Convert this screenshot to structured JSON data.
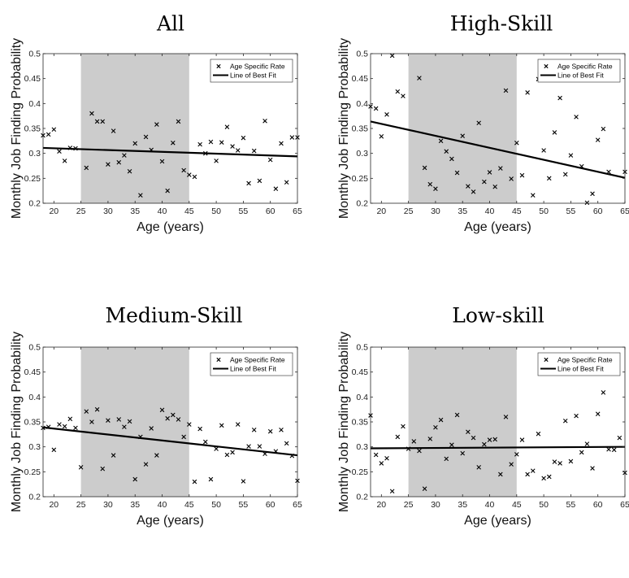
{
  "legend": {
    "marker_label": "Age Specific Rate",
    "line_label": "Line of Best Fit"
  },
  "chart_data": [
    {
      "type": "scatter",
      "title": "All",
      "xlabel": "Age (years)",
      "ylabel": "Monthly Job Finding Probability",
      "xlim": [
        18,
        65
      ],
      "ylim": [
        0.2,
        0.5
      ],
      "xticks": [
        20,
        25,
        30,
        35,
        40,
        45,
        50,
        55,
        60,
        65
      ],
      "yticks": [
        0.2,
        0.25,
        0.3,
        0.35,
        0.4,
        0.45,
        0.5
      ],
      "shaded_region": [
        25,
        45
      ],
      "legend_position": "top-right",
      "series": [
        {
          "name": "Age Specific Rate",
          "marker": "x",
          "x": [
            18,
            19,
            20,
            21,
            22,
            23,
            24,
            26,
            27,
            28,
            29,
            30,
            31,
            32,
            33,
            34,
            35,
            36,
            37,
            38,
            39,
            40,
            41,
            42,
            43,
            44,
            45,
            46,
            47,
            48,
            49,
            50,
            51,
            52,
            53,
            54,
            55,
            56,
            57,
            58,
            59,
            60,
            61,
            62,
            63,
            64,
            65
          ],
          "y": [
            0.336,
            0.338,
            0.348,
            0.304,
            0.285,
            0.311,
            0.31,
            0.271,
            0.38,
            0.364,
            0.364,
            0.278,
            0.345,
            0.282,
            0.296,
            0.264,
            0.32,
            0.216,
            0.333,
            0.307,
            0.358,
            0.284,
            0.225,
            0.321,
            0.364,
            0.266,
            0.257,
            0.253,
            0.318,
            0.3,
            0.323,
            0.285,
            0.322,
            0.353,
            0.314,
            0.306,
            0.331,
            0.24,
            0.305,
            0.245,
            0.365,
            0.287,
            0.229,
            0.32,
            0.242,
            0.332,
            0.332
          ]
        },
        {
          "name": "Line of Best Fit",
          "type": "line",
          "x": [
            18,
            65
          ],
          "y": [
            0.311,
            0.294
          ]
        }
      ]
    },
    {
      "type": "scatter",
      "title": "High-Skill",
      "xlabel": "Age (years)",
      "ylabel": "Monthly Job Finding Probability",
      "xlim": [
        18,
        65
      ],
      "ylim": [
        0.2,
        0.5
      ],
      "xticks": [
        20,
        25,
        30,
        35,
        40,
        45,
        50,
        55,
        60,
        65
      ],
      "yticks": [
        0.2,
        0.25,
        0.3,
        0.35,
        0.4,
        0.45,
        0.5
      ],
      "shaded_region": [
        25,
        45
      ],
      "legend_position": "top-right",
      "series": [
        {
          "name": "Age Specific Rate",
          "marker": "x",
          "x": [
            18,
            19,
            20,
            21,
            22,
            23,
            24,
            27,
            28,
            29,
            30,
            31,
            32,
            33,
            34,
            35,
            36,
            37,
            38,
            39,
            40,
            41,
            42,
            43,
            44,
            45,
            46,
            47,
            48,
            49,
            50,
            51,
            52,
            53,
            54,
            55,
            56,
            57,
            58,
            59,
            60,
            61,
            62,
            65
          ],
          "y": [
            0.394,
            0.39,
            0.334,
            0.378,
            0.496,
            0.424,
            0.415,
            0.451,
            0.271,
            0.238,
            0.229,
            0.325,
            0.304,
            0.289,
            0.261,
            0.335,
            0.234,
            0.223,
            0.361,
            0.243,
            0.262,
            0.233,
            0.27,
            0.426,
            0.249,
            0.321,
            0.256,
            0.422,
            0.216,
            0.449,
            0.306,
            0.25,
            0.342,
            0.411,
            0.258,
            0.296,
            0.373,
            0.274,
            0.201,
            0.219,
            0.327,
            0.349,
            0.263,
            0.263
          ]
        },
        {
          "name": "Line of Best Fit",
          "type": "line",
          "x": [
            18,
            65
          ],
          "y": [
            0.364,
            0.251
          ]
        }
      ]
    },
    {
      "type": "scatter",
      "title": "Medium-Skill",
      "xlabel": "Age (years)",
      "ylabel": "Monthly Job Finding Probability",
      "xlim": [
        18,
        65
      ],
      "ylim": [
        0.2,
        0.5
      ],
      "xticks": [
        20,
        25,
        30,
        35,
        40,
        45,
        50,
        55,
        60,
        65
      ],
      "yticks": [
        0.2,
        0.25,
        0.3,
        0.35,
        0.4,
        0.45,
        0.5
      ],
      "shaded_region": [
        25,
        45
      ],
      "legend_position": "top-right",
      "series": [
        {
          "name": "Age Specific Rate",
          "marker": "x",
          "x": [
            18,
            19,
            20,
            21,
            22,
            23,
            24,
            25,
            26,
            27,
            28,
            29,
            30,
            31,
            32,
            33,
            34,
            35,
            36,
            37,
            38,
            39,
            40,
            41,
            42,
            43,
            44,
            45,
            46,
            47,
            48,
            49,
            50,
            51,
            52,
            53,
            54,
            55,
            56,
            57,
            58,
            59,
            60,
            61,
            62,
            63,
            64,
            65
          ],
          "y": [
            0.338,
            0.34,
            0.294,
            0.345,
            0.341,
            0.356,
            0.338,
            0.259,
            0.371,
            0.35,
            0.375,
            0.256,
            0.353,
            0.283,
            0.355,
            0.34,
            0.351,
            0.235,
            0.32,
            0.265,
            0.337,
            0.283,
            0.374,
            0.357,
            0.364,
            0.355,
            0.32,
            0.345,
            0.23,
            0.336,
            0.31,
            0.235,
            0.296,
            0.343,
            0.284,
            0.289,
            0.345,
            0.231,
            0.301,
            0.334,
            0.301,
            0.286,
            0.331,
            0.291,
            0.334,
            0.307,
            0.282,
            0.232
          ]
        },
        {
          "name": "Line of Best Fit",
          "type": "line",
          "x": [
            18,
            65
          ],
          "y": [
            0.339,
            0.283
          ]
        }
      ]
    },
    {
      "type": "scatter",
      "title": "Low-skill",
      "xlabel": "Age (years)",
      "ylabel": "Monthly Job Finding Probability",
      "xlim": [
        18,
        65
      ],
      "ylim": [
        0.2,
        0.5
      ],
      "xticks": [
        20,
        25,
        30,
        35,
        40,
        45,
        50,
        55,
        60,
        65
      ],
      "yticks": [
        0.2,
        0.25,
        0.3,
        0.35,
        0.4,
        0.45,
        0.5
      ],
      "shaded_region": [
        25,
        45
      ],
      "legend_position": "top-right",
      "series": [
        {
          "name": "Age Specific Rate",
          "marker": "x",
          "x": [
            18,
            19,
            20,
            21,
            22,
            23,
            24,
            25,
            26,
            27,
            28,
            29,
            30,
            31,
            32,
            33,
            34,
            35,
            36,
            37,
            38,
            39,
            40,
            41,
            42,
            43,
            44,
            45,
            46,
            47,
            48,
            49,
            50,
            51,
            52,
            53,
            54,
            55,
            56,
            57,
            58,
            59,
            60,
            61,
            62,
            63,
            64,
            65
          ],
          "y": [
            0.363,
            0.284,
            0.267,
            0.277,
            0.211,
            0.32,
            0.341,
            0.296,
            0.311,
            0.292,
            0.216,
            0.316,
            0.339,
            0.354,
            0.276,
            0.304,
            0.364,
            0.287,
            0.33,
            0.318,
            0.259,
            0.305,
            0.314,
            0.315,
            0.245,
            0.36,
            0.265,
            0.285,
            0.314,
            0.245,
            0.252,
            0.326,
            0.237,
            0.24,
            0.27,
            0.267,
            0.352,
            0.271,
            0.362,
            0.289,
            0.306,
            0.257,
            0.366,
            0.409,
            0.295,
            0.294,
            0.318,
            0.248
          ]
        },
        {
          "name": "Line of Best Fit",
          "type": "line",
          "x": [
            18,
            65
          ],
          "y": [
            0.297,
            0.3
          ]
        }
      ]
    }
  ]
}
